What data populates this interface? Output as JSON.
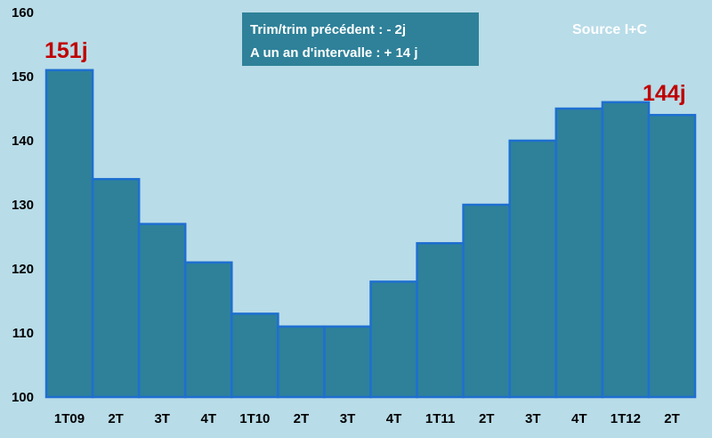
{
  "chart_data": {
    "type": "bar",
    "categories": [
      "1T09",
      "2T",
      "3T",
      "4T",
      "1T10",
      "2T",
      "3T",
      "4T",
      "1T11",
      "2T",
      "3T",
      "4T",
      "1T12",
      "2T"
    ],
    "values": [
      151,
      134,
      127,
      121,
      113,
      111,
      111,
      118,
      124,
      130,
      140,
      145,
      146,
      144
    ],
    "ylim": [
      100,
      160
    ],
    "yticks": [
      100,
      110,
      120,
      130,
      140,
      150,
      160
    ],
    "grid": false,
    "annotations": {
      "first_label": "151j",
      "last_label": "144j",
      "note_line1": "Trim/trim précédent : - 2j",
      "note_line2": "A un an d'intervalle : + 14 j",
      "source": "Source I+C"
    },
    "colors": {
      "background": "#b8dce8",
      "bar_fill": "#2e8199",
      "bar_stroke": "#1e6fd0",
      "label": "#c00000"
    }
  }
}
